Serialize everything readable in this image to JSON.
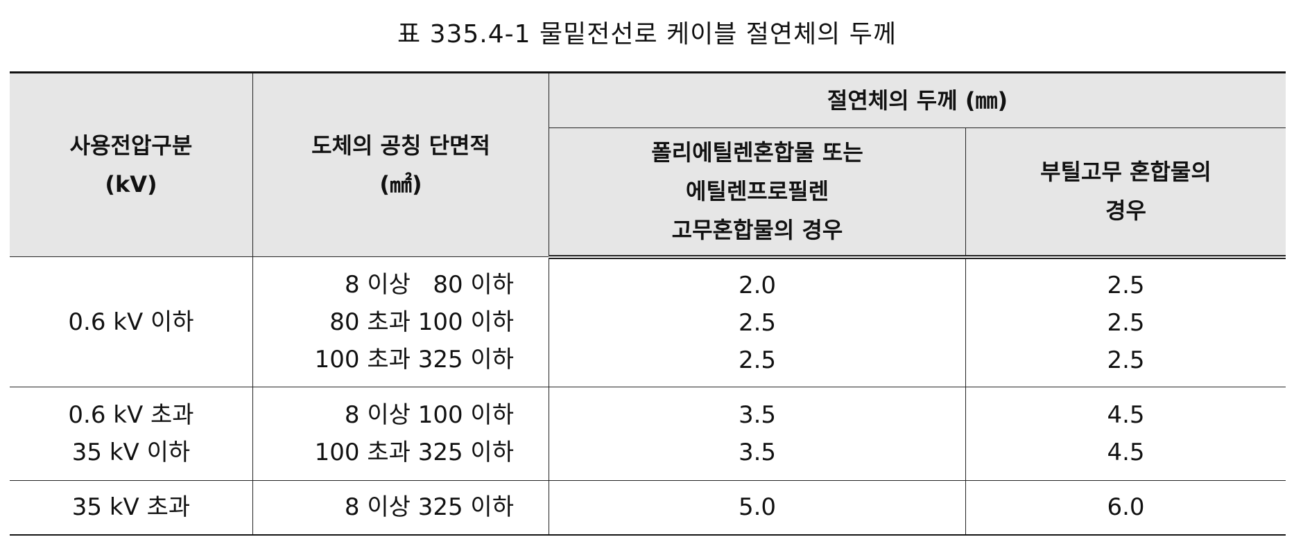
{
  "title": "표 335.4-1 물밑전선로 케이블 절연체의 두께",
  "header": {
    "voltage": [
      "사용전압구분",
      "(kV)"
    ],
    "area": [
      "도체의 공칭 단면적",
      "(㎟)"
    ],
    "thickness": "절연체의 두께 (㎜)",
    "pe": [
      "폴리에틸렌혼합물 또는",
      "에틸렌프로필렌",
      "고무혼합물의 경우"
    ],
    "butyl": [
      "부틸고무 혼합물의",
      "경우"
    ]
  },
  "rows": [
    {
      "voltage": [
        "0.6 kV 이하"
      ],
      "area": [
        "8 이상   80 이하",
        "80 초과 100 이하",
        "100 초과 325 이하"
      ],
      "pe": [
        "2.0",
        "2.5",
        "2.5"
      ],
      "butyl": [
        "2.5",
        "2.5",
        "2.5"
      ]
    },
    {
      "voltage": [
        "0.6 kV 초과",
        "35 kV 이하"
      ],
      "area": [
        "8 이상 100 이하",
        "100 초과 325 이하"
      ],
      "pe": [
        "3.5",
        "3.5"
      ],
      "butyl": [
        "4.5",
        "4.5"
      ]
    },
    {
      "voltage": [
        "35 kV 초과"
      ],
      "area": [
        "8 이상 325 이하"
      ],
      "pe": [
        "5.0"
      ],
      "butyl": [
        "6.0"
      ]
    }
  ]
}
